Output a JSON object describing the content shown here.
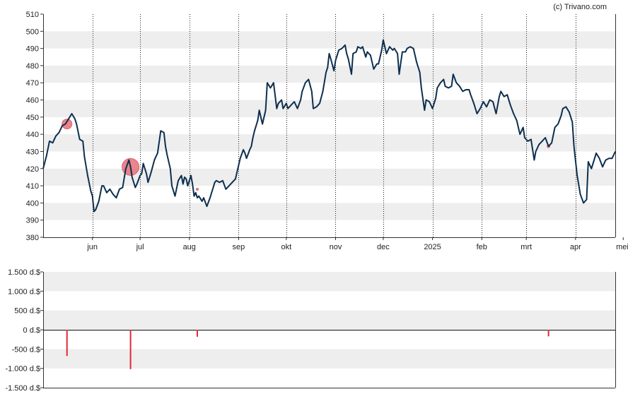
{
  "chart_data": [
    {
      "type": "line",
      "name": "price-chart",
      "title": "",
      "xlabel": "",
      "ylabel": "",
      "watermark": "(c) Trivano.com",
      "ylim": [
        380,
        510
      ],
      "y_ticks": [
        380,
        390,
        400,
        410,
        420,
        430,
        440,
        450,
        460,
        470,
        480,
        490,
        500,
        510
      ],
      "x_range": [
        0,
        360
      ],
      "x_ticks": [
        {
          "label": "jun",
          "x": 31
        },
        {
          "label": "jul",
          "x": 61
        },
        {
          "label": "aug",
          "x": 92
        },
        {
          "label": "sep",
          "x": 123
        },
        {
          "label": "okt",
          "x": 153
        },
        {
          "label": "nov",
          "x": 184
        },
        {
          "label": "dec",
          "x": 214
        },
        {
          "label": "2025",
          "x": 245
        },
        {
          "label": "feb",
          "x": 276
        },
        {
          "label": "mrt",
          "x": 304
        },
        {
          "label": "apr",
          "x": 335
        },
        {
          "label": "mei",
          "x": 365
        }
      ],
      "line_color": "#0d2f4f",
      "band_color": "#eeeeee",
      "marker_color": "#e8707a",
      "series": [
        {
          "x": [
            0,
            2,
            4,
            6,
            8,
            10,
            12,
            14,
            16,
            18,
            20,
            21,
            23,
            25,
            26,
            28,
            30,
            31,
            32,
            33,
            35,
            37,
            38,
            40,
            42,
            44,
            46,
            48,
            50,
            52,
            54,
            55,
            56,
            58,
            59,
            61,
            62,
            63,
            65,
            66,
            68,
            70,
            72,
            74,
            76,
            77,
            78,
            80,
            81,
            83,
            85,
            87,
            88,
            89,
            90,
            91,
            93,
            94,
            95,
            96,
            97,
            98,
            100,
            101,
            103,
            105,
            107,
            108,
            109,
            111,
            113,
            115,
            117,
            119,
            121,
            122,
            124,
            126,
            127,
            128,
            130,
            131,
            132,
            133,
            135,
            136,
            138,
            140,
            141,
            143,
            145,
            147,
            148,
            150,
            151,
            153,
            154,
            156,
            158,
            160,
            162,
            163,
            165,
            167,
            169,
            170,
            172,
            174,
            176,
            178,
            179,
            180,
            181,
            183,
            184,
            186,
            188,
            190,
            191,
            192,
            194,
            195,
            197,
            198,
            200,
            201,
            203,
            204,
            206,
            208,
            210,
            211,
            213,
            214,
            216,
            218,
            220,
            221,
            223,
            224,
            226,
            228,
            229,
            231,
            233,
            235,
            237,
            238,
            240,
            241,
            243,
            245,
            247,
            248,
            250,
            252,
            253,
            255,
            257,
            258,
            260,
            262,
            264,
            266,
            268,
            269,
            271,
            273,
            275,
            277,
            279,
            281,
            283,
            285,
            287,
            288,
            290,
            292,
            294,
            296,
            298,
            300,
            302,
            303,
            305,
            307,
            309,
            310,
            312,
            314,
            316,
            318,
            320,
            322,
            324,
            326,
            327,
            329,
            331,
            333,
            334,
            336,
            338,
            340,
            342,
            343,
            345,
            347,
            348,
            350,
            352,
            354,
            356,
            358,
            360
          ],
          "y": [
            420,
            427,
            436,
            435,
            439,
            441,
            445,
            446,
            449,
            452,
            449,
            446,
            437,
            436,
            427,
            416,
            407,
            404,
            395,
            396,
            401,
            410,
            410,
            406,
            408,
            405,
            403,
            408,
            409,
            420,
            425,
            421,
            415,
            409,
            411,
            416,
            417,
            423,
            417,
            412,
            418,
            425,
            429,
            442,
            441,
            433,
            428,
            420,
            410,
            404,
            413,
            416,
            411,
            415,
            414,
            410,
            416,
            411,
            404,
            406,
            403,
            404,
            401,
            403,
            398,
            403,
            409,
            412,
            413,
            412,
            413,
            408,
            410,
            412,
            414,
            418,
            426,
            431,
            429,
            426,
            431,
            433,
            438,
            442,
            448,
            454,
            446,
            454,
            470,
            467,
            470,
            455,
            458,
            460,
            455,
            458,
            455,
            457,
            459,
            455,
            460,
            465,
            470,
            472,
            465,
            455,
            456,
            458,
            465,
            476,
            479,
            487,
            484,
            477,
            483,
            489,
            490,
            492,
            487,
            484,
            475,
            487,
            488,
            491,
            490,
            491,
            485,
            488,
            486,
            478,
            481,
            481,
            489,
            495,
            487,
            491,
            489,
            490,
            487,
            475,
            488,
            488,
            490,
            491,
            490,
            482,
            476,
            467,
            454,
            460,
            459,
            455,
            461,
            467,
            470,
            472,
            468,
            467,
            468,
            475,
            470,
            468,
            465,
            466,
            466,
            463,
            458,
            452,
            455,
            459,
            456,
            460,
            459,
            452,
            462,
            465,
            462,
            463,
            457,
            452,
            448,
            440,
            444,
            438,
            436,
            437,
            425,
            430,
            434,
            436,
            438,
            433,
            435,
            444,
            446,
            451,
            455,
            456,
            453,
            447,
            433,
            416,
            405,
            400,
            402,
            424,
            420,
            426,
            429,
            426,
            421,
            425,
            426,
            426,
            430
          ]
        }
      ],
      "markers": [
        {
          "x": 15,
          "y": 446,
          "size": 7
        },
        {
          "x": 55,
          "y": 421,
          "size": 12
        },
        {
          "x": 97,
          "y": 408,
          "size": 1.5
        },
        {
          "x": 318,
          "y": 433,
          "size": 2
        }
      ]
    },
    {
      "type": "bar",
      "name": "insider-trades",
      "title": "",
      "xlabel": "",
      "ylabel": "",
      "ylim": [
        -1500,
        1500
      ],
      "y_ticks": [
        {
          "v": 1500,
          "label": "1.500 d.$"
        },
        {
          "v": 1000,
          "label": "1.000 d.$"
        },
        {
          "v": 500,
          "label": "500 d.$"
        },
        {
          "v": 0,
          "label": "0 d.$"
        },
        {
          "v": -500,
          "label": "-500 d.$"
        },
        {
          "v": -1000,
          "label": "-1.000 d.$"
        },
        {
          "v": -1500,
          "label": "-1.500 d.$"
        }
      ],
      "bar_color": "#e0283c",
      "x": [
        15,
        55,
        97,
        318
      ],
      "values": [
        -680,
        -1020,
        -180,
        -170
      ]
    }
  ]
}
